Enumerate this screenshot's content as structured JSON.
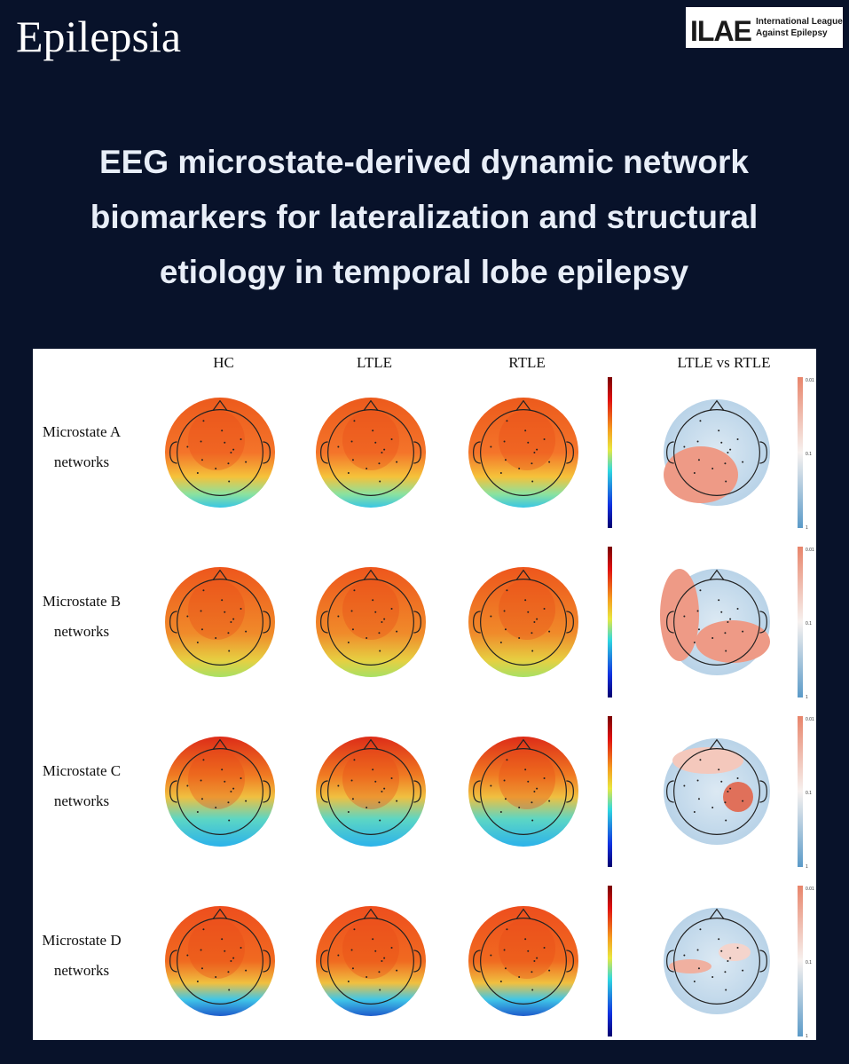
{
  "header": {
    "journal": "Epilepsia",
    "logo_mark": "ILAE",
    "logo_text": [
      "International League",
      "Against Epilepsy"
    ]
  },
  "title": [
    "EEG microstate-derived dynamic network",
    "biomarkers for lateralization and structural",
    "etiology in temporal lobe epilepsy"
  ],
  "figure": {
    "columns": [
      "HC",
      "LTLE",
      "RTLE",
      "LTLE vs RTLE"
    ],
    "rows": [
      {
        "label": [
          "Microstate A",
          "networks"
        ]
      },
      {
        "label": [
          "Microstate B",
          "networks"
        ]
      },
      {
        "label": [
          "Microstate C",
          "networks"
        ]
      },
      {
        "label": [
          "Microstate D",
          "networks"
        ]
      }
    ],
    "pvalue_ticks": [
      "0.01",
      "0.1",
      "1"
    ]
  }
}
